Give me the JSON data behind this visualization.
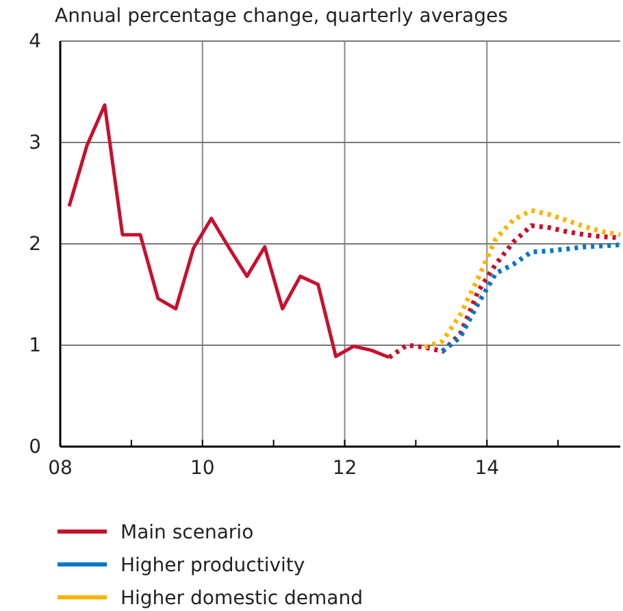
{
  "chart_data": {
    "type": "line",
    "subtitle": "Annual percentage change, quarterly averages",
    "xlim": [
      8,
      15.875
    ],
    "xticks": [
      {
        "value": 8,
        "label": "08"
      },
      {
        "value": 9,
        "label": null
      },
      {
        "value": 10,
        "label": "10"
      },
      {
        "value": 11,
        "label": null
      },
      {
        "value": 12,
        "label": "12"
      },
      {
        "value": 13,
        "label": null
      },
      {
        "value": 14,
        "label": "14"
      },
      {
        "value": 15,
        "label": null
      }
    ],
    "ylim": [
      0,
      4
    ],
    "yticks": [
      0,
      1,
      2,
      3,
      4
    ],
    "grid": true,
    "legend": "bottom",
    "marker": "none",
    "series": [
      {
        "name": "Main scenario",
        "color": "#c8102e",
        "line_style": "solid",
        "x": [
          8.125,
          8.375,
          8.625,
          8.875,
          9.125,
          9.375,
          9.625,
          9.875,
          10.125,
          10.375,
          10.625,
          10.875,
          11.125,
          11.375,
          11.625,
          11.875,
          12.125,
          12.375,
          12.625
        ],
        "values": [
          2.37,
          2.97,
          3.37,
          2.09,
          2.09,
          1.46,
          1.36,
          1.96,
          2.25,
          1.96,
          1.68,
          1.97,
          1.36,
          1.68,
          1.6,
          0.89,
          0.99,
          0.95,
          0.88
        ]
      },
      {
        "color": "#c8102e",
        "line_style": "dotted",
        "x": [
          12.625,
          12.875,
          13.125,
          13.375,
          13.625,
          13.875,
          14.125,
          14.375,
          14.625,
          14.875,
          15.125,
          15.375,
          15.625,
          15.875
        ],
        "values": [
          0.88,
          1.0,
          0.98,
          0.94,
          1.11,
          1.53,
          1.8,
          2.02,
          2.18,
          2.16,
          2.12,
          2.09,
          2.07,
          2.06
        ]
      },
      {
        "name": "Higher productivity",
        "color": "#0077c8",
        "line_style": "dotted",
        "x": [
          13.375,
          13.625,
          13.875,
          14.125,
          14.375,
          14.625,
          14.875,
          15.125,
          15.375,
          15.625,
          15.875
        ],
        "values": [
          0.94,
          1.08,
          1.41,
          1.71,
          1.8,
          1.92,
          1.93,
          1.95,
          1.97,
          1.98,
          1.99
        ]
      },
      {
        "name": "Higher domestic demand",
        "color": "#ffb300",
        "line_style": "dotted",
        "x": [
          13.125,
          13.375,
          13.625,
          13.875,
          14.125,
          14.375,
          14.625,
          14.875,
          15.125,
          15.375,
          15.625,
          15.875
        ],
        "values": [
          0.98,
          1.04,
          1.3,
          1.66,
          2.05,
          2.24,
          2.33,
          2.29,
          2.23,
          2.17,
          2.12,
          2.09
        ]
      }
    ]
  }
}
